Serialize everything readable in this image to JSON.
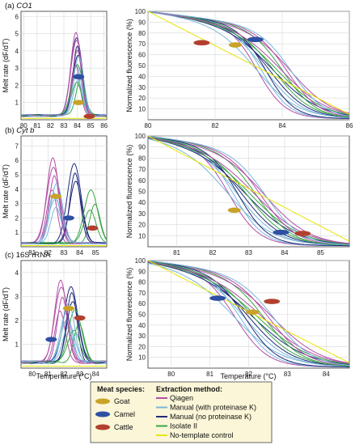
{
  "panels": [
    {
      "label": "(a)",
      "gene": "CO1",
      "italic": true,
      "melt": {
        "xlim": [
          79.8,
          86.2
        ],
        "ylim": [
          0,
          6.3
        ],
        "xticks": [
          80,
          81,
          82,
          83,
          84,
          85,
          86
        ],
        "yticks": [
          1,
          2,
          3,
          4,
          5,
          6
        ],
        "peaks": [
          84.0,
          84.0,
          83.9,
          84.1
        ],
        "markers": [
          {
            "species": "Camel",
            "x": 84.1,
            "y": 2.5
          },
          {
            "species": "Goat",
            "x": 84.1,
            "y": 1.0
          },
          {
            "species": "Cattle",
            "x": 84.9,
            "y": 0.2
          }
        ]
      },
      "norm": {
        "xlim": [
          80,
          86
        ],
        "xticks": [
          80,
          82,
          84,
          86
        ],
        "ylim": [
          0,
          100
        ],
        "yticks": [
          10,
          20,
          30,
          40,
          50,
          60,
          70,
          80,
          90,
          100
        ],
        "midpoint": 83.8,
        "markers": [
          {
            "species": "Cattle",
            "x": 81.6,
            "y": 71
          },
          {
            "species": "Goat",
            "x": 82.6,
            "y": 69
          },
          {
            "species": "Camel",
            "x": 83.2,
            "y": 74
          }
        ]
      }
    },
    {
      "label": "(b)",
      "gene": "Cyt b",
      "italic": true,
      "melt": {
        "xlim": [
          80.3,
          85.7
        ],
        "ylim": [
          0,
          7.7
        ],
        "xticks": [
          81,
          82,
          83,
          84,
          85
        ],
        "yticks": [
          1,
          2,
          3,
          4,
          5,
          6,
          7
        ],
        "peaks": [
          82.4,
          82.45,
          83.6,
          84.8
        ],
        "markers": [
          {
            "species": "Goat",
            "x": 82.5,
            "y": 3.5
          },
          {
            "species": "Camel",
            "x": 83.3,
            "y": 2.0
          },
          {
            "species": "Cattle",
            "x": 84.8,
            "y": 1.3
          }
        ]
      },
      "norm": {
        "xlim": [
          80.2,
          85.8
        ],
        "xticks": [
          81,
          82,
          83,
          84,
          85
        ],
        "ylim": [
          0,
          100
        ],
        "yticks": [
          10,
          20,
          30,
          40,
          50,
          60,
          70,
          80,
          90,
          100
        ],
        "midpoint": 83.0,
        "markers": [
          {
            "species": "Goat",
            "x": 82.6,
            "y": 33
          },
          {
            "species": "Camel",
            "x": 83.9,
            "y": 13
          },
          {
            "species": "Cattle",
            "x": 84.5,
            "y": 12
          }
        ]
      }
    },
    {
      "label": "(c)",
      "gene": "16S rRNA",
      "italic": false,
      "melt": {
        "xlim": [
          79.3,
          84.7
        ],
        "ylim": [
          0,
          4.5
        ],
        "xticks": [
          80,
          81,
          82,
          83,
          84
        ],
        "yticks": [
          1,
          2,
          3,
          4
        ],
        "peaks": [
          81.9,
          82.2,
          82.4,
          82.8
        ],
        "markers": [
          {
            "species": "Camel",
            "x": 81.2,
            "y": 1.2
          },
          {
            "species": "Goat",
            "x": 82.3,
            "y": 2.5
          },
          {
            "species": "Cattle",
            "x": 83.0,
            "y": 2.1
          }
        ]
      },
      "norm": {
        "xlim": [
          79.4,
          84.6
        ],
        "xticks": [
          80,
          81,
          82,
          83,
          84
        ],
        "ylim": [
          0,
          100
        ],
        "yticks": [
          10,
          20,
          30,
          40,
          50,
          60,
          70,
          80,
          90,
          100
        ],
        "midpoint": 82.2,
        "markers": [
          {
            "species": "Camel",
            "x": 81.2,
            "y": 65
          },
          {
            "species": "Goat",
            "x": 82.1,
            "y": 52
          },
          {
            "species": "Cattle",
            "x": 82.6,
            "y": 62
          }
        ]
      }
    }
  ],
  "axes_labels": {
    "melt_y": "Melt rate (dF/dT)",
    "norm_y": "Normalized fluorescence (%)",
    "x": "Temperature (°C)"
  },
  "legend": {
    "species_title": "Meat species:",
    "species": [
      {
        "name": "Goat",
        "color": "#c9a227"
      },
      {
        "name": "Camel",
        "color": "#2e4fa3"
      },
      {
        "name": "Cattle",
        "color": "#b2402e"
      }
    ],
    "methods_title": "Extraction method:",
    "methods": [
      {
        "name": "Qiagen",
        "color": "#b44fa8"
      },
      {
        "name": "Manual (with proteinase K)",
        "color": "#79b7d8"
      },
      {
        "name": "Manual (no proteinase K)",
        "color": "#1f2a7a"
      },
      {
        "name": "Isolate II",
        "color": "#3aa547"
      },
      {
        "name": "No-template control",
        "color": "#e6e600"
      }
    ]
  }
}
